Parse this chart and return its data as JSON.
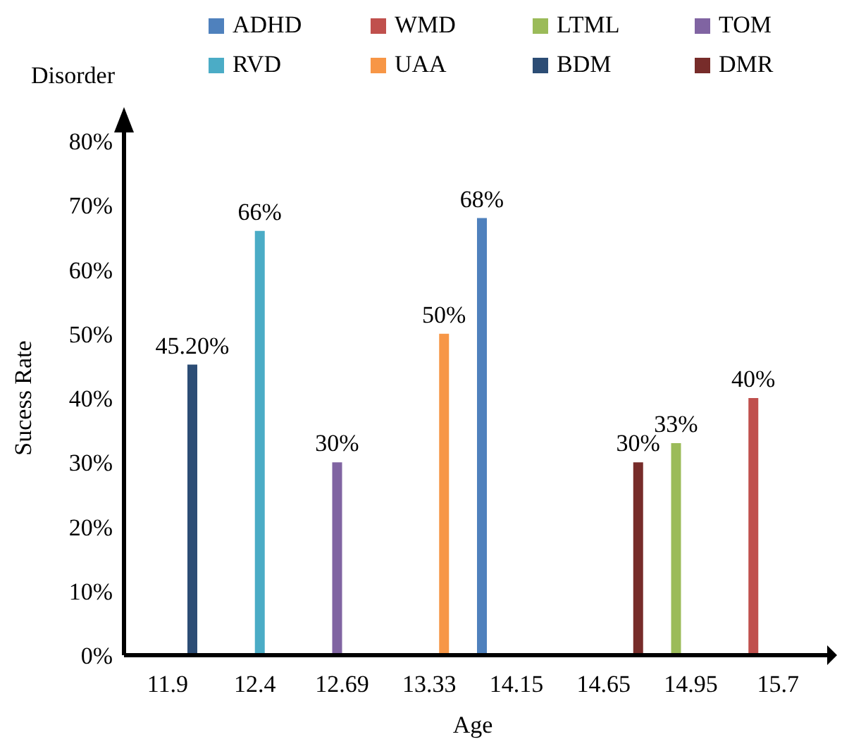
{
  "chart_data": {
    "type": "bar",
    "legend_title": "Disorder",
    "xlabel": "Age",
    "ylabel": "Sucess Rate",
    "categories": [
      "11.9",
      "12.4",
      "12.69",
      "13.33",
      "14.15",
      "14.65",
      "14.95",
      "15.7"
    ],
    "ylim": [
      0,
      80
    ],
    "yticks": [
      {
        "value": 0,
        "label": "0%"
      },
      {
        "value": 10,
        "label": "10%"
      },
      {
        "value": 20,
        "label": "20%"
      },
      {
        "value": 30,
        "label": "30%"
      },
      {
        "value": 40,
        "label": "40%"
      },
      {
        "value": 50,
        "label": "50%"
      },
      {
        "value": 60,
        "label": "60%"
      },
      {
        "value": 70,
        "label": "70%"
      },
      {
        "value": 80,
        "label": "80%"
      }
    ],
    "grid": false,
    "legend": "top",
    "series": [
      {
        "name": "ADHD",
        "color": "#4f81bd",
        "values": [
          null,
          null,
          null,
          null,
          68,
          null,
          null,
          null
        ],
        "value_labels": [
          null,
          null,
          null,
          null,
          "68%",
          null,
          null,
          null
        ]
      },
      {
        "name": "WMD",
        "color": "#c0504d",
        "values": [
          null,
          null,
          null,
          null,
          null,
          null,
          null,
          40
        ],
        "value_labels": [
          null,
          null,
          null,
          null,
          null,
          null,
          null,
          "40%"
        ]
      },
      {
        "name": "LTML",
        "color": "#9bbb59",
        "values": [
          null,
          null,
          null,
          null,
          null,
          null,
          33,
          null
        ],
        "value_labels": [
          null,
          null,
          null,
          null,
          null,
          null,
          "33%",
          null
        ]
      },
      {
        "name": "TOM",
        "color": "#8064a2",
        "values": [
          null,
          null,
          30,
          null,
          null,
          null,
          null,
          null
        ],
        "value_labels": [
          null,
          null,
          "30%",
          null,
          null,
          null,
          null,
          null
        ]
      },
      {
        "name": "RVD",
        "color": "#4bacc6",
        "values": [
          null,
          66,
          null,
          null,
          null,
          null,
          null,
          null
        ],
        "value_labels": [
          null,
          "66%",
          null,
          null,
          null,
          null,
          null,
          null
        ]
      },
      {
        "name": "UAA",
        "color": "#f79646",
        "values": [
          null,
          null,
          null,
          50,
          null,
          null,
          null,
          null
        ],
        "value_labels": [
          null,
          null,
          null,
          "50%",
          null,
          null,
          null,
          null
        ]
      },
      {
        "name": "BDM",
        "color": "#2c4d75",
        "values": [
          45.2,
          null,
          null,
          null,
          null,
          null,
          null,
          null
        ],
        "value_labels": [
          "45.20%",
          null,
          null,
          null,
          null,
          null,
          null,
          null
        ]
      },
      {
        "name": "DMR",
        "color": "#772c2a",
        "values": [
          null,
          null,
          null,
          null,
          null,
          30,
          null,
          null
        ],
        "value_labels": [
          null,
          null,
          null,
          null,
          null,
          "30%",
          null,
          null
        ]
      }
    ]
  }
}
